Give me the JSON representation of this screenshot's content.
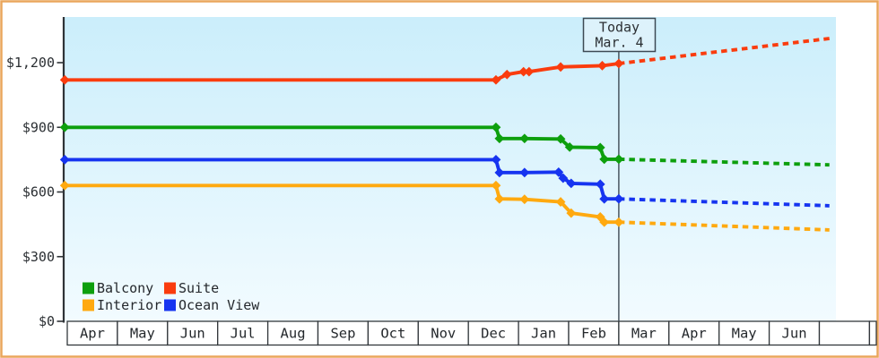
{
  "colors": {
    "frame": "#eaa65c",
    "plot_bg_top": "#cbeefb",
    "plot_bg_bottom": "#f2fbff",
    "axis": "#2f3337",
    "today_line": "#3e4a54",
    "today_box_fill": "#ddf2fb",
    "today_box_border": "#3d4a54",
    "month_cell_fill": "#ffffff",
    "month_cell_border": "#33383c"
  },
  "chart_data": {
    "type": "line",
    "title": "",
    "subtitle": "",
    "y_axis": {
      "ticks": [
        {
          "value": 0,
          "label": "$0"
        },
        {
          "value": 300,
          "label": "$300"
        },
        {
          "value": 600,
          "label": "$600"
        },
        {
          "value": 900,
          "label": "$900"
        },
        {
          "value": 1200,
          "label": "$1,200"
        }
      ],
      "ylim": [
        0,
        1410
      ],
      "grid": false
    },
    "x_axis": {
      "months": [
        "Apr",
        "May",
        "Jun",
        "Jul",
        "Aug",
        "Sep",
        "Oct",
        "Nov",
        "Dec",
        "Jan",
        "Feb",
        "Mar",
        "Apr",
        "May",
        "Jun",
        ""
      ]
    },
    "today_marker": {
      "line1": "Today",
      "line2": "Mar. 4",
      "month_position": 11.0
    },
    "legend": {
      "position": "bottom-left-inside",
      "items": [
        {
          "label": "Balcony",
          "color": "#0d9f0d"
        },
        {
          "label": "Suite",
          "color": "#fa3c0e"
        },
        {
          "label": "Interior",
          "color": "#ffa90f"
        },
        {
          "label": "Ocean View",
          "color": "#1634f0"
        }
      ]
    },
    "series": [
      {
        "name": "Suite",
        "color": "#fa3c0e",
        "solid_points": [
          [
            -0.05,
            1120
          ],
          [
            8.55,
            1120
          ],
          [
            8.77,
            1145
          ],
          [
            9.1,
            1158
          ],
          [
            9.21,
            1158
          ],
          [
            9.84,
            1180
          ],
          [
            10.67,
            1186
          ],
          [
            11.0,
            1196
          ]
        ],
        "forecast_points": [
          [
            11.0,
            1196
          ],
          [
            15.2,
            1312
          ]
        ]
      },
      {
        "name": "Balcony",
        "color": "#0d9f0d",
        "solid_points": [
          [
            -0.05,
            900
          ],
          [
            8.55,
            900
          ],
          [
            8.62,
            848
          ],
          [
            9.12,
            848
          ],
          [
            9.84,
            846
          ],
          [
            10.02,
            808
          ],
          [
            10.63,
            806
          ],
          [
            10.71,
            752
          ],
          [
            11.0,
            752
          ]
        ],
        "forecast_points": [
          [
            11.0,
            752
          ],
          [
            15.2,
            726
          ]
        ]
      },
      {
        "name": "Ocean View",
        "color": "#1634f0",
        "solid_points": [
          [
            -0.05,
            750
          ],
          [
            8.55,
            750
          ],
          [
            8.62,
            690
          ],
          [
            9.12,
            690
          ],
          [
            9.8,
            692
          ],
          [
            9.89,
            664
          ],
          [
            10.05,
            640
          ],
          [
            10.63,
            636
          ],
          [
            10.71,
            568
          ],
          [
            11.0,
            568
          ]
        ],
        "forecast_points": [
          [
            11.0,
            568
          ],
          [
            15.2,
            536
          ]
        ]
      },
      {
        "name": "Interior",
        "color": "#ffa90f",
        "solid_points": [
          [
            -0.05,
            630
          ],
          [
            8.55,
            630
          ],
          [
            8.62,
            568
          ],
          [
            9.12,
            566
          ],
          [
            9.84,
            554
          ],
          [
            10.05,
            502
          ],
          [
            10.63,
            484
          ],
          [
            10.71,
            460
          ],
          [
            11.0,
            460
          ]
        ],
        "forecast_points": [
          [
            11.0,
            460
          ],
          [
            15.2,
            424
          ]
        ]
      }
    ]
  }
}
